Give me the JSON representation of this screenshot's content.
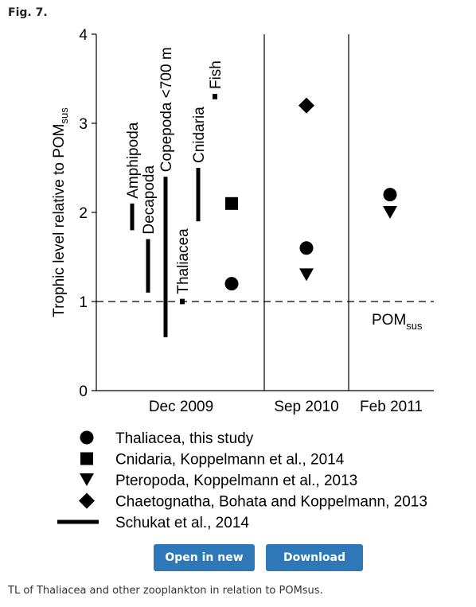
{
  "figure_label": "Fig. 7.",
  "caption": "TL of Thaliacea and other zooplankton in relation to POMsus.",
  "buttons": {
    "open": "Open in new tab",
    "download": "Download slide"
  },
  "chart_data": {
    "type": "scatter",
    "ylabel": "Trophic level relative to POM",
    "ylabel_sub": "sus",
    "ylim": [
      0,
      4
    ],
    "yticks": [
      "0",
      "1",
      "2",
      "3",
      "4"
    ],
    "panels": [
      "Dec 2009",
      "Sep 2010",
      "Feb 2011"
    ],
    "reference_line": {
      "y": 1,
      "label": "POM",
      "label_sub": "sus"
    },
    "ranges": [
      {
        "label": "Amphipoda",
        "low": 1.8,
        "high": 2.1,
        "panel": 0
      },
      {
        "label": "Decapoda",
        "low": 1.1,
        "high": 1.7,
        "panel": 0
      },
      {
        "label": "Copepoda <700 m",
        "low": 0.6,
        "high": 2.4,
        "panel": 0
      },
      {
        "label": "Thaliacea",
        "low": 0.97,
        "high": 1.03,
        "panel": 0
      },
      {
        "label": "Cnidaria",
        "low": 1.9,
        "high": 2.5,
        "panel": 0
      },
      {
        "label": "Fish",
        "low": 3.27,
        "high": 3.33,
        "panel": 0
      }
    ],
    "points": [
      {
        "group": "Cnidaria",
        "marker": "square",
        "panel": 0,
        "y": 2.1
      },
      {
        "group": "Thaliacea",
        "marker": "circle",
        "panel": 0,
        "y": 1.2
      },
      {
        "group": "Chaetognatha",
        "marker": "diamond",
        "panel": 1,
        "y": 3.2
      },
      {
        "group": "Thaliacea",
        "marker": "circle",
        "panel": 1,
        "y": 1.6
      },
      {
        "group": "Pteropoda",
        "marker": "triangle",
        "panel": 1,
        "y": 1.3
      },
      {
        "group": "Thaliacea",
        "marker": "circle",
        "panel": 2,
        "y": 2.2
      },
      {
        "group": "Pteropoda",
        "marker": "triangle",
        "panel": 2,
        "y": 2.0
      }
    ],
    "legend": [
      {
        "marker": "circle",
        "label": "Thaliacea, this study"
      },
      {
        "marker": "square",
        "label": "Cnidaria, Koppelmann et al., 2014"
      },
      {
        "marker": "triangle",
        "label": "Pteropoda, Koppelmann et al., 2013"
      },
      {
        "marker": "diamond",
        "label": "Chaetognatha, Bohata and Koppelmann, 2013"
      },
      {
        "marker": "line",
        "label": "Schukat et al., 2014"
      }
    ]
  }
}
